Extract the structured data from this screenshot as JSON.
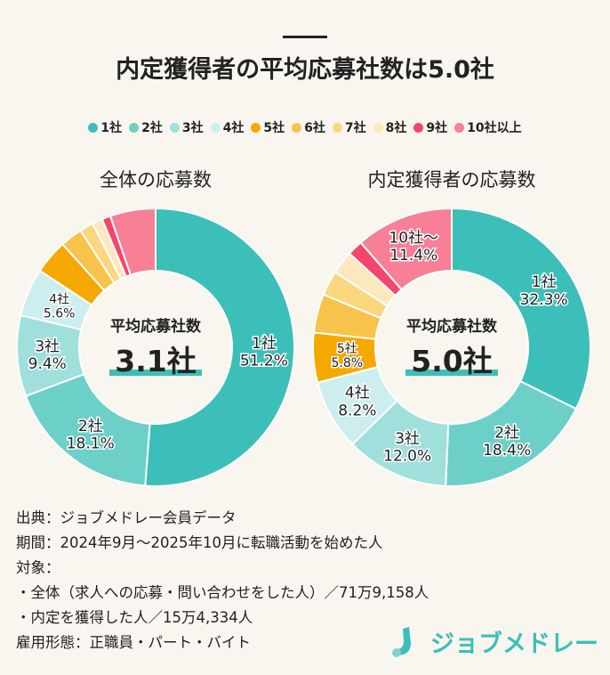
{
  "title": "内定獲得者の平均応募社数は5.0社",
  "legend": [
    {
      "label": "1社",
      "color": "#3bbfb8"
    },
    {
      "label": "2社",
      "color": "#6dd0c8"
    },
    {
      "label": "3社",
      "color": "#a0e0dc"
    },
    {
      "label": "4社",
      "color": "#cdeeee"
    },
    {
      "label": "5社",
      "color": "#f5a800"
    },
    {
      "label": "6社",
      "color": "#f8c34a"
    },
    {
      "label": "7社",
      "color": "#fad77f"
    },
    {
      "label": "8社",
      "color": "#fce8bf"
    },
    {
      "label": "9社",
      "color": "#f5456a"
    },
    {
      "label": "10社以上",
      "color": "#f77f96"
    }
  ],
  "chart_data": [
    {
      "type": "pie",
      "title": "全体の応募数",
      "center_label": "平均応募社数",
      "center_value": "3.1社",
      "categories": [
        "1社",
        "2社",
        "3社",
        "4社",
        "5社",
        "6社",
        "7社",
        "8社",
        "9社",
        "10社以上"
      ],
      "values": [
        51.2,
        18.1,
        9.4,
        5.6,
        4.0,
        2.6,
        1.6,
        1.2,
        1.0,
        5.3
      ],
      "labels": [
        "1社\n51.2%",
        "2社\n18.1%",
        "3社\n9.4%",
        "4社\n5.6%",
        "",
        "",
        "",
        "",
        "",
        ""
      ]
    },
    {
      "type": "pie",
      "title": "内定獲得者の応募数",
      "center_label": "平均応募社数",
      "center_value": "5.0社",
      "categories": [
        "1社",
        "2社",
        "3社",
        "4社",
        "5社",
        "6社",
        "7社",
        "8社",
        "9社",
        "10社以上"
      ],
      "values": [
        32.3,
        18.4,
        12.0,
        8.2,
        5.8,
        4.5,
        2.9,
        2.7,
        1.8,
        11.4
      ],
      "labels": [
        "1社\n32.3%",
        "2社\n18.4%",
        "3社\n12.0%",
        "4社\n8.2%",
        "5社\n5.8%",
        "",
        "",
        "",
        "",
        "10社～\n11.4%"
      ]
    }
  ],
  "notes": [
    "出典：ジョブメドレー会員データ",
    "期間：2024年9月～2025年10月に転職活動を始めた人",
    "対象：",
    "・全体（求人への応募・問い合わせをした人）／71万9,158人",
    "・内定を獲得した人／15万4,334人",
    "雇用形態：正職員・パート・バイト"
  ],
  "logo": "ジョブメドレー"
}
